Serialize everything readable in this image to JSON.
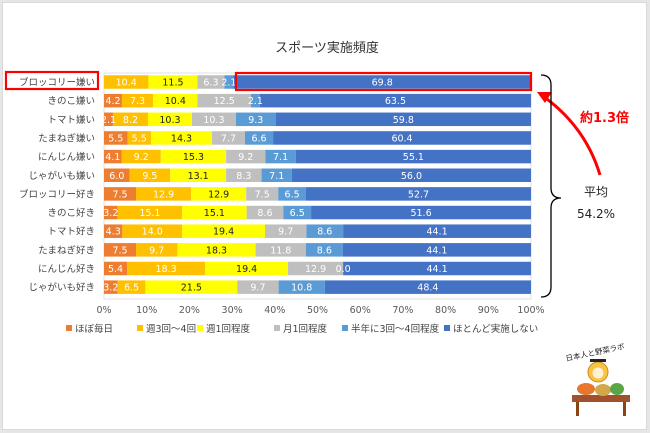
{
  "chart_data": {
    "type": "bar",
    "orientation": "horizontal",
    "stacked": "percent",
    "title": "スポーツ実施頻度",
    "xlabel": "",
    "ylabel": "",
    "xlim": [
      0,
      100
    ],
    "x_ticks": [
      "0%",
      "10%",
      "20%",
      "30%",
      "40%",
      "50%",
      "60%",
      "70%",
      "80%",
      "90%",
      "100%"
    ],
    "grid": false,
    "legend_position": "bottom",
    "categories": [
      "ブロッコリー嫌い",
      "きのこ嫌い",
      "トマト嫌い",
      "たまねぎ嫌い",
      "にんじん嫌い",
      "じゃがいも嫌い",
      "ブロッコリー好き",
      "きのこ好き",
      "トマト好き",
      "たまねぎ好き",
      "にんじん好き",
      "じゃがいも好き"
    ],
    "series": [
      {
        "name": "ほぼ毎日",
        "color": "#ed7d31",
        "values": [
          0,
          4.2,
          2.1,
          5.5,
          4.1,
          6.0,
          7.5,
          3.2,
          4.3,
          7.5,
          5.4,
          3.2
        ]
      },
      {
        "name": "週3回～4回",
        "color": "#ffc000",
        "values": [
          10.4,
          7.3,
          8.2,
          5.5,
          9.2,
          9.5,
          12.9,
          15.1,
          14.0,
          9.7,
          18.3,
          6.5
        ]
      },
      {
        "name": "週1回程度",
        "color": "#ffff00",
        "values": [
          11.5,
          10.4,
          10.3,
          14.3,
          15.3,
          13.1,
          12.9,
          15.1,
          19.4,
          18.3,
          19.4,
          21.5
        ]
      },
      {
        "name": "月1回程度",
        "color": "#bfbfbf",
        "values": [
          6.3,
          12.5,
          10.3,
          7.7,
          9.2,
          8.3,
          7.5,
          8.6,
          9.7,
          11.8,
          12.9,
          9.7
        ]
      },
      {
        "name": "半年に3回～4回程度",
        "color": "#5b9bd5",
        "values": [
          2.1,
          2.1,
          9.3,
          6.6,
          7.1,
          7.1,
          6.5,
          6.5,
          8.6,
          8.6,
          0.0,
          10.8
        ]
      },
      {
        "name": "ほとんど実施しない",
        "color": "#4472c4",
        "values": [
          69.8,
          63.5,
          59.8,
          60.4,
          55.1,
          56.0,
          52.7,
          51.6,
          44.1,
          44.1,
          44.1,
          48.4
        ]
      }
    ],
    "data_labels": [
      [
        "",
        "10.4",
        "11.5",
        "6.3",
        "2.1",
        "69.8"
      ],
      [
        "4.2",
        "7.3",
        "10.4",
        "12.5",
        "2.1",
        "63.5"
      ],
      [
        "2.1",
        "8.2",
        "10.3",
        "10.3",
        "9.3",
        "59.8"
      ],
      [
        "5.5",
        "5.5",
        "14.3",
        "7.7",
        "6.6",
        "60.4"
      ],
      [
        "4.1",
        "9.2",
        "15.3",
        "9.2",
        "7.1",
        "55.1"
      ],
      [
        "6.0",
        "9.5",
        "13.1",
        "8.3",
        "7.1",
        "56.0"
      ],
      [
        "7.5",
        "12.9",
        "12.9",
        "7.5",
        "6.5",
        "52.7"
      ],
      [
        "3.2",
        "15.1",
        "15.1",
        "8.6",
        "6.5",
        "51.6"
      ],
      [
        "4.3",
        "14.0",
        "19.4",
        "9.7",
        "8.6",
        "44.1"
      ],
      [
        "7.5",
        "9.7",
        "18.3",
        "11.8",
        "8.6",
        "44.1"
      ],
      [
        "5.4",
        "18.3",
        "19.4",
        "12.9",
        "0.0",
        "44.1"
      ],
      [
        "3.2",
        "6.5",
        "21.5",
        "9.7",
        "10.8",
        "48.4"
      ]
    ],
    "label_colors": [
      "#ffffff",
      "#ffffff",
      "#222222",
      "#ffffff",
      "#ffffff",
      "#ffffff"
    ],
    "annotations": {
      "highlight_category": "ブロッコリー嫌い",
      "highlight_color": "#ff0000",
      "ratio_text": "約1.3倍",
      "average_label": "平均",
      "average_value": "54.2%"
    }
  },
  "logo": {
    "text": "日本人と野菜ラボ"
  }
}
